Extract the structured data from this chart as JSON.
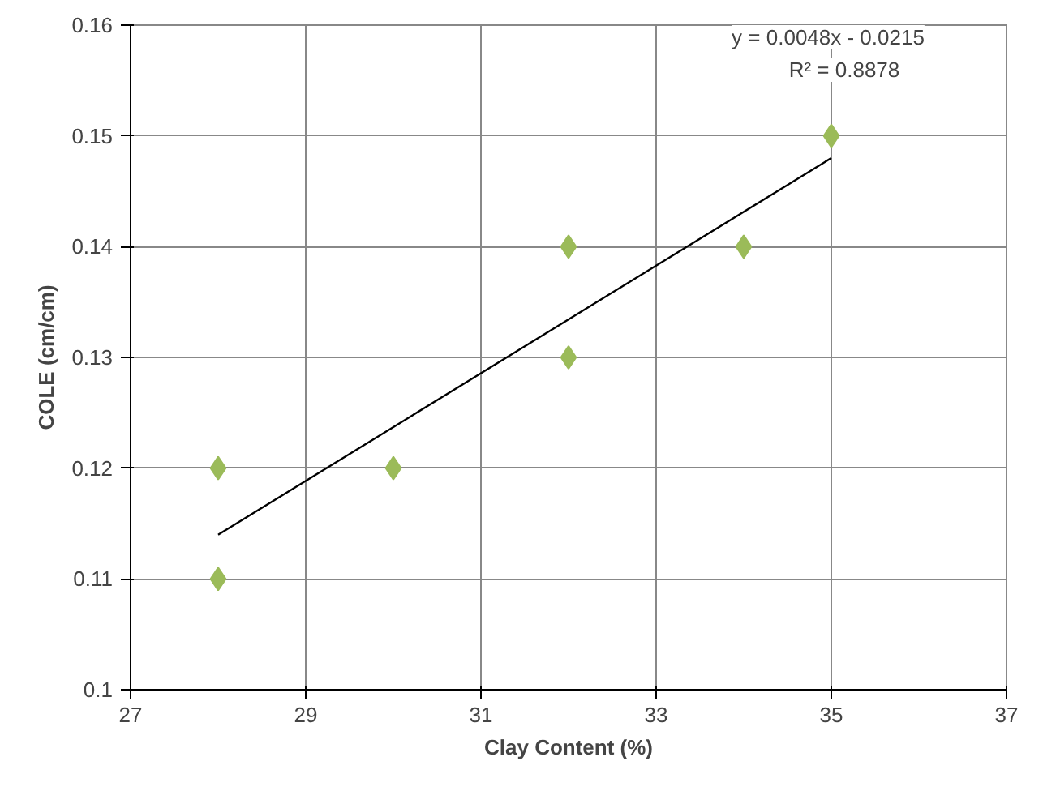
{
  "chart_data": {
    "type": "scatter",
    "xlabel": "Clay Content (%)",
    "ylabel": "COLE (cm/cm)",
    "series": [
      {
        "color": "#9bbb59",
        "x": [
          28,
          28,
          30,
          32,
          32,
          34,
          35
        ],
        "values": [
          0.12,
          0.11,
          0.12,
          0.14,
          0.13,
          0.14,
          0.15
        ],
        "marker": "diamond"
      },
      {
        "type": "line",
        "color": "#000000",
        "x": [
          28,
          35
        ],
        "values": [
          0.114,
          0.148
        ],
        "line_style": "solid"
      }
    ],
    "annotations": [
      "y = 0.0048x - 0.0215",
      "R² = 0.8878"
    ],
    "xlim": [
      27,
      37
    ],
    "xticks": [
      27,
      29,
      31,
      33,
      35,
      37
    ],
    "ylim": [
      0.1,
      0.16
    ],
    "yticks": [
      0.1,
      0.11,
      0.12,
      0.13,
      0.14,
      0.15,
      0.16
    ],
    "grid": true
  }
}
